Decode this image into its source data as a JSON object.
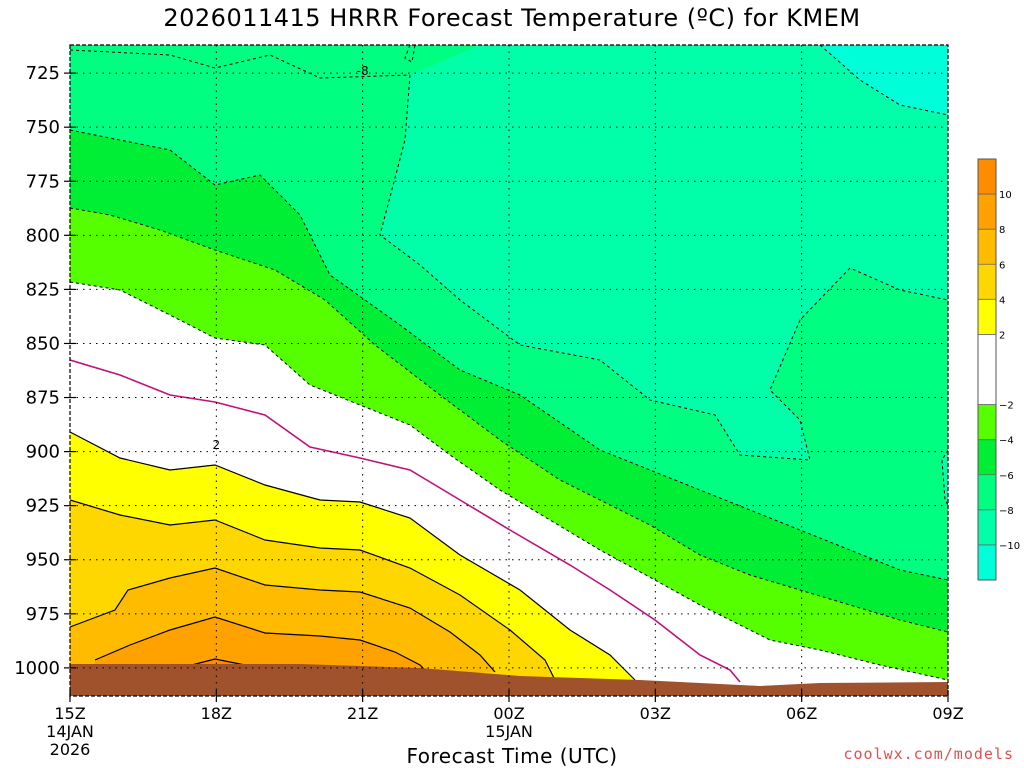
{
  "chart_data": {
    "type": "heatmap",
    "title": "2026011415 HRRR Forecast Temperature (ºC) for KMEM",
    "xlabel": "Forecast Time (UTC)",
    "x_ticks": [
      {
        "hour": 0,
        "label": "15Z",
        "sub1": "14JAN",
        "sub2": "2026"
      },
      {
        "hour": 3,
        "label": "18Z"
      },
      {
        "hour": 6,
        "label": "21Z"
      },
      {
        "hour": 9,
        "label": "00Z",
        "sub1": "15JAN"
      },
      {
        "hour": 12,
        "label": "03Z"
      },
      {
        "hour": 15,
        "label": "06Z"
      },
      {
        "hour": 18,
        "label": "09Z"
      }
    ],
    "x_range_hours": [
      0,
      18
    ],
    "y_ticks": [
      725,
      750,
      775,
      800,
      825,
      850,
      875,
      900,
      925,
      950,
      975,
      1000
    ],
    "y_range_hpa": [
      712,
      1013
    ],
    "colorbar": {
      "labels": [
        "10",
        "8",
        "6",
        "4",
        "2",
        "−2",
        "−4",
        "−6",
        "−8",
        "−10"
      ],
      "bands": [
        {
          "from": 10,
          "to": 12,
          "color": "#ff8c00"
        },
        {
          "from": 8,
          "to": 10,
          "color": "#ffa200"
        },
        {
          "from": 6,
          "to": 8,
          "color": "#ffbb00"
        },
        {
          "from": 4,
          "to": 6,
          "color": "#ffd700"
        },
        {
          "from": 2,
          "to": 4,
          "color": "#ffff00"
        },
        {
          "from": -2,
          "to": 2,
          "color": "#ffffff"
        },
        {
          "from": -4,
          "to": -2,
          "color": "#55ff00"
        },
        {
          "from": -6,
          "to": -4,
          "color": "#00ee33"
        },
        {
          "from": -8,
          "to": -6,
          "color": "#00ff80"
        },
        {
          "from": -10,
          "to": -8,
          "color": "#00ffa8"
        },
        {
          "from": -12,
          "to": -10,
          "color": "#00ffd8"
        }
      ]
    },
    "contour_labels": [
      {
        "text": "-8",
        "hour": 6.0,
        "hpa": 724
      },
      {
        "text": "2",
        "hour": 3.0,
        "hpa": 897
      }
    ],
    "ground_color": "#a0522d",
    "credit": "coolwx.com/models"
  }
}
